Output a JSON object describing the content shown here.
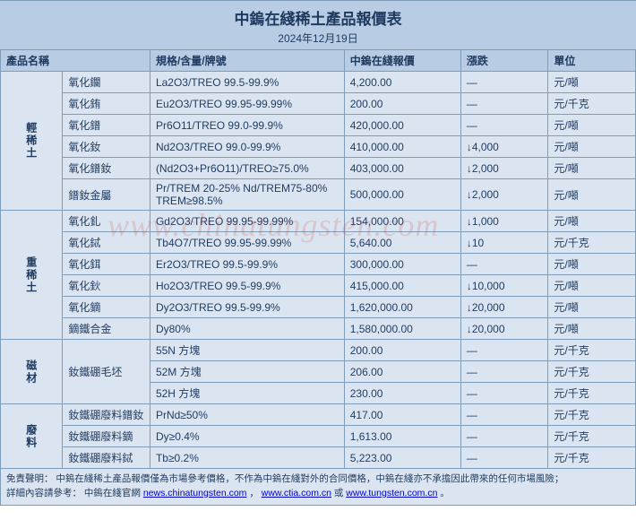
{
  "title": "中鎢在綫稀土產品報價表",
  "date": "2024年12月19日",
  "watermark": "www.chinatungsten.com",
  "headers": {
    "category": "",
    "name": "產品名稱",
    "spec": "規格/含量/牌號",
    "price": "中鎢在綫報價",
    "change": "漲跌",
    "unit": "單位"
  },
  "groups": [
    {
      "category": "輕稀土",
      "rows": [
        {
          "name": "氧化鑭",
          "spec": "La2O3/TREO 99.5-99.9%",
          "price": "4,200.00",
          "change": "—",
          "unit": "元/噸"
        },
        {
          "name": "氧化銪",
          "spec": "Eu2O3/TREO 99.95-99.99%",
          "price": "200.00",
          "change": "—",
          "unit": "元/千克"
        },
        {
          "name": "氧化鐠",
          "spec": "Pr6O11/TREO 99.0-99.9%",
          "price": "420,000.00",
          "change": "—",
          "unit": "元/噸"
        },
        {
          "name": "氧化釹",
          "spec": "Nd2O3/TREO 99.0-99.9%",
          "price": "410,000.00",
          "change": "↓4,000",
          "unit": "元/噸"
        },
        {
          "name": "氧化鐠釹",
          "spec": "(Nd2O3+Pr6O11)/TREO≥75.0%",
          "price": "403,000.00",
          "change": "↓2,000",
          "unit": "元/噸"
        },
        {
          "name": "鐠釹金屬",
          "spec": "Pr/TREM 20-25% Nd/TREM75-80% TREM≥98.5%",
          "price": "500,000.00",
          "change": "↓2,000",
          "unit": "元/噸"
        }
      ]
    },
    {
      "category": "重稀土",
      "rows": [
        {
          "name": "氧化釓",
          "spec": "Gd2O3/TREO 99.95-99.99%",
          "price": "154,000.00",
          "change": "↓1,000",
          "unit": "元/噸"
        },
        {
          "name": "氧化鋱",
          "spec": "Tb4O7/TREO 99.95-99.99%",
          "price": "5,640.00",
          "change": "↓10",
          "unit": "元/千克"
        },
        {
          "name": "氧化鉺",
          "spec": "Er2O3/TREO 99.5-99.9%",
          "price": "300,000.00",
          "change": "—",
          "unit": "元/噸"
        },
        {
          "name": "氧化鈥",
          "spec": "Ho2O3/TREO 99.5-99.9%",
          "price": "415,000.00",
          "change": "↓10,000",
          "unit": "元/噸"
        },
        {
          "name": "氧化鏑",
          "spec": "Dy2O3/TREO 99.5-99.9%",
          "price": "1,620,000.00",
          "change": "↓20,000",
          "unit": "元/噸"
        },
        {
          "name": "鏑鐵合金",
          "spec": "Dy80%",
          "price": "1,580,000.00",
          "change": "↓20,000",
          "unit": "元/噸"
        }
      ]
    },
    {
      "category": "磁材",
      "rows": [
        {
          "name": "釹鐵硼毛坯",
          "spec": "55N 方塊",
          "price": "200.00",
          "change": "—",
          "unit": "元/千克",
          "namerowspan": 3
        },
        {
          "name": "",
          "spec": "52M 方塊",
          "price": "206.00",
          "change": "—",
          "unit": "元/千克"
        },
        {
          "name": "",
          "spec": "52H 方塊",
          "price": "230.00",
          "change": "—",
          "unit": "元/千克"
        }
      ]
    },
    {
      "category": "廢料",
      "rows": [
        {
          "name": "釹鐵硼廢料鐠釹",
          "spec": "PrNd≥50%",
          "price": "417.00",
          "change": "—",
          "unit": "元/千克"
        },
        {
          "name": "釹鐵硼廢料鏑",
          "spec": "Dy≥0.4%",
          "price": "1,613.00",
          "change": "—",
          "unit": "元/千克"
        },
        {
          "name": "釹鐵硼廢料鋱",
          "spec": "Tb≥0.2%",
          "price": "5,223.00",
          "change": "—",
          "unit": "元/千克"
        }
      ]
    }
  ],
  "footer": {
    "disclaimer_label": "免責聲明：",
    "disclaimer_text": "中鎢在綫稀土產品報價僅為市場參考價格，不作為中鎢在綫對外的合同價格，中鎢在綫亦不承擔因此帶來的任何市場風險；",
    "refer_label": "詳細內容請參考：",
    "refer_text": "中鎢在綫官網 ",
    "link1": "news.chinatungsten.com",
    "link2": "www.ctia.com.cn",
    "or": " 或 ",
    "link3": "www.tungsten.com.cn",
    "sep": " ，"
  }
}
